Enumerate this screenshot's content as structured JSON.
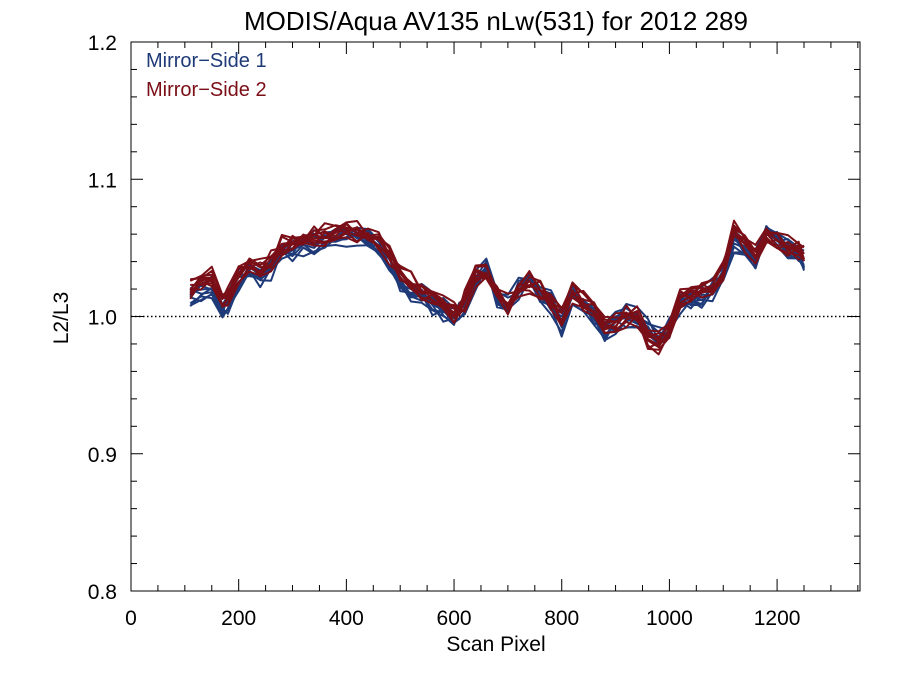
{
  "chart_data": {
    "type": "line",
    "title": "MODIS/Aqua AV135 nLw(531) for 2012 289",
    "xlabel": "Scan Pixel",
    "ylabel": "L2/L3",
    "xlim": [
      0,
      1354
    ],
    "ylim": [
      0.8,
      1.2
    ],
    "x_ticks": [
      0,
      200,
      400,
      600,
      800,
      1000,
      1200
    ],
    "x_tick_labels": [
      "0",
      "200",
      "400",
      "600",
      "800",
      "1000",
      "1200"
    ],
    "y_ticks": [
      0.8,
      0.9,
      1.0,
      1.1,
      1.2
    ],
    "y_tick_labels": [
      "0.8",
      "0.9",
      "1.0",
      "1.1",
      "1.2"
    ],
    "reference_line": {
      "y": 1.0,
      "style": "dotted"
    },
    "legend": {
      "placement": "top-left",
      "entries": [
        {
          "label": "Mirror−Side 1",
          "color": "#1f3a78"
        },
        {
          "label": "Mirror−Side 2",
          "color": "#7a0f17"
        }
      ]
    },
    "x": [
      110,
      130,
      150,
      170,
      180,
      200,
      220,
      240,
      260,
      280,
      300,
      320,
      340,
      360,
      380,
      400,
      420,
      440,
      460,
      480,
      500,
      520,
      540,
      560,
      580,
      600,
      610,
      620,
      640,
      660,
      680,
      700,
      720,
      740,
      760,
      780,
      800,
      820,
      840,
      860,
      880,
      900,
      920,
      940,
      960,
      980,
      1000,
      1020,
      1040,
      1060,
      1080,
      1100,
      1120,
      1140,
      1160,
      1180,
      1200,
      1220,
      1240,
      1250
    ],
    "series": [
      {
        "name": "Mirror−Side 1",
        "color": "#1f3a78",
        "count": 10,
        "values": [
          1.015,
          1.02,
          1.022,
          1.005,
          1.01,
          1.025,
          1.032,
          1.03,
          1.036,
          1.048,
          1.05,
          1.053,
          1.055,
          1.057,
          1.058,
          1.06,
          1.06,
          1.058,
          1.05,
          1.04,
          1.025,
          1.02,
          1.016,
          1.01,
          1.005,
          1.0,
          1.003,
          1.01,
          1.028,
          1.035,
          1.015,
          1.008,
          1.02,
          1.03,
          1.018,
          1.01,
          0.995,
          1.015,
          1.01,
          1.0,
          0.99,
          0.995,
          1.0,
          0.998,
          0.99,
          0.985,
          0.99,
          1.01,
          1.012,
          1.015,
          1.02,
          1.03,
          1.055,
          1.05,
          1.04,
          1.06,
          1.055,
          1.05,
          1.045,
          1.04
        ]
      },
      {
        "name": "Mirror−Side 2",
        "color": "#7a0f17",
        "count": 10,
        "values": [
          1.02,
          1.025,
          1.028,
          1.012,
          1.015,
          1.03,
          1.036,
          1.034,
          1.04,
          1.052,
          1.054,
          1.057,
          1.058,
          1.06,
          1.06,
          1.062,
          1.063,
          1.06,
          1.055,
          1.045,
          1.03,
          1.025,
          1.02,
          1.015,
          1.008,
          1.003,
          1.005,
          1.012,
          1.03,
          1.032,
          1.018,
          1.01,
          1.022,
          1.025,
          1.02,
          1.012,
          1.0,
          1.018,
          1.012,
          1.003,
          0.992,
          0.996,
          1.002,
          1.0,
          0.985,
          0.982,
          0.988,
          1.012,
          1.015,
          1.018,
          1.022,
          1.035,
          1.065,
          1.055,
          1.045,
          1.058,
          1.055,
          1.052,
          1.05,
          1.045
        ]
      }
    ]
  }
}
